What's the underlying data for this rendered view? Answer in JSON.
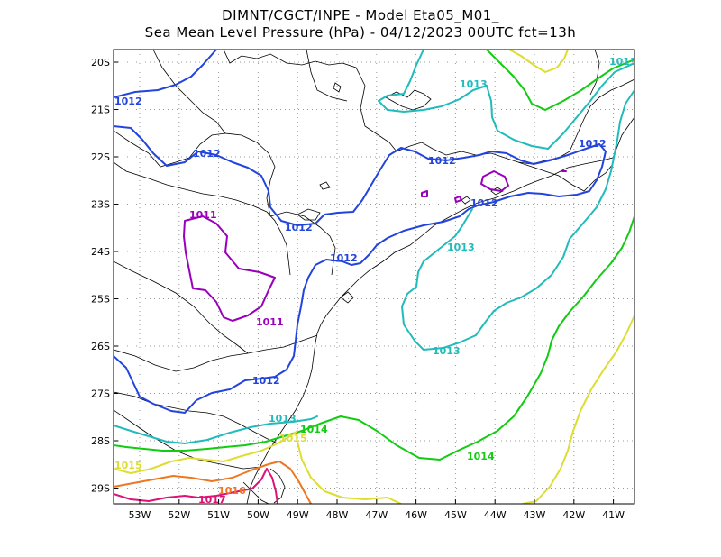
{
  "header": {
    "line1": "DIMNT/CGCT/INPE -  Model Eta05_M01_",
    "line2": "Sea Mean Level Pressure (hPa) - 04/12/2023 00UTC fct=13h"
  },
  "axes": {
    "lat_labels": [
      "20S",
      "21S",
      "22S",
      "23S",
      "24S",
      "25S",
      "26S",
      "27S",
      "28S",
      "29S"
    ],
    "lon_labels": [
      "53W",
      "52W",
      "51W",
      "50W",
      "49W",
      "48W",
      "47W",
      "46W",
      "45W",
      "44W",
      "43W",
      "42W",
      "41W"
    ]
  },
  "contours": [
    {
      "level": "1011",
      "color": "#9900bb"
    },
    {
      "level": "1012",
      "color": "#2244dd"
    },
    {
      "level": "1013",
      "color": "#22bbbb"
    },
    {
      "level": "1014",
      "color": "#11cc11"
    },
    {
      "level": "1015",
      "color": "#dddd33"
    },
    {
      "level": "1016",
      "color": "#ee7722"
    },
    {
      "level": "1017",
      "color": "#dd1177"
    }
  ],
  "contour_labels": {
    "c1011a": "1011",
    "c1011b": "1011",
    "c1012a": "1012",
    "c1012b": "1012",
    "c1012c": "1012",
    "c1012d": "1012",
    "c1012e": "1012",
    "c1012f": "1012",
    "c1012g": "1012",
    "c1012h": "1012",
    "c1013a": "1013",
    "c1013b": "1013",
    "c1013c": "1013",
    "c1013d": "1013",
    "c1013e": "1013",
    "c1014a": "1014",
    "c1014b": "1014",
    "c1015a": "1015",
    "c1015b": "1015",
    "c1016a": "1016",
    "c1017a": "1017"
  }
}
